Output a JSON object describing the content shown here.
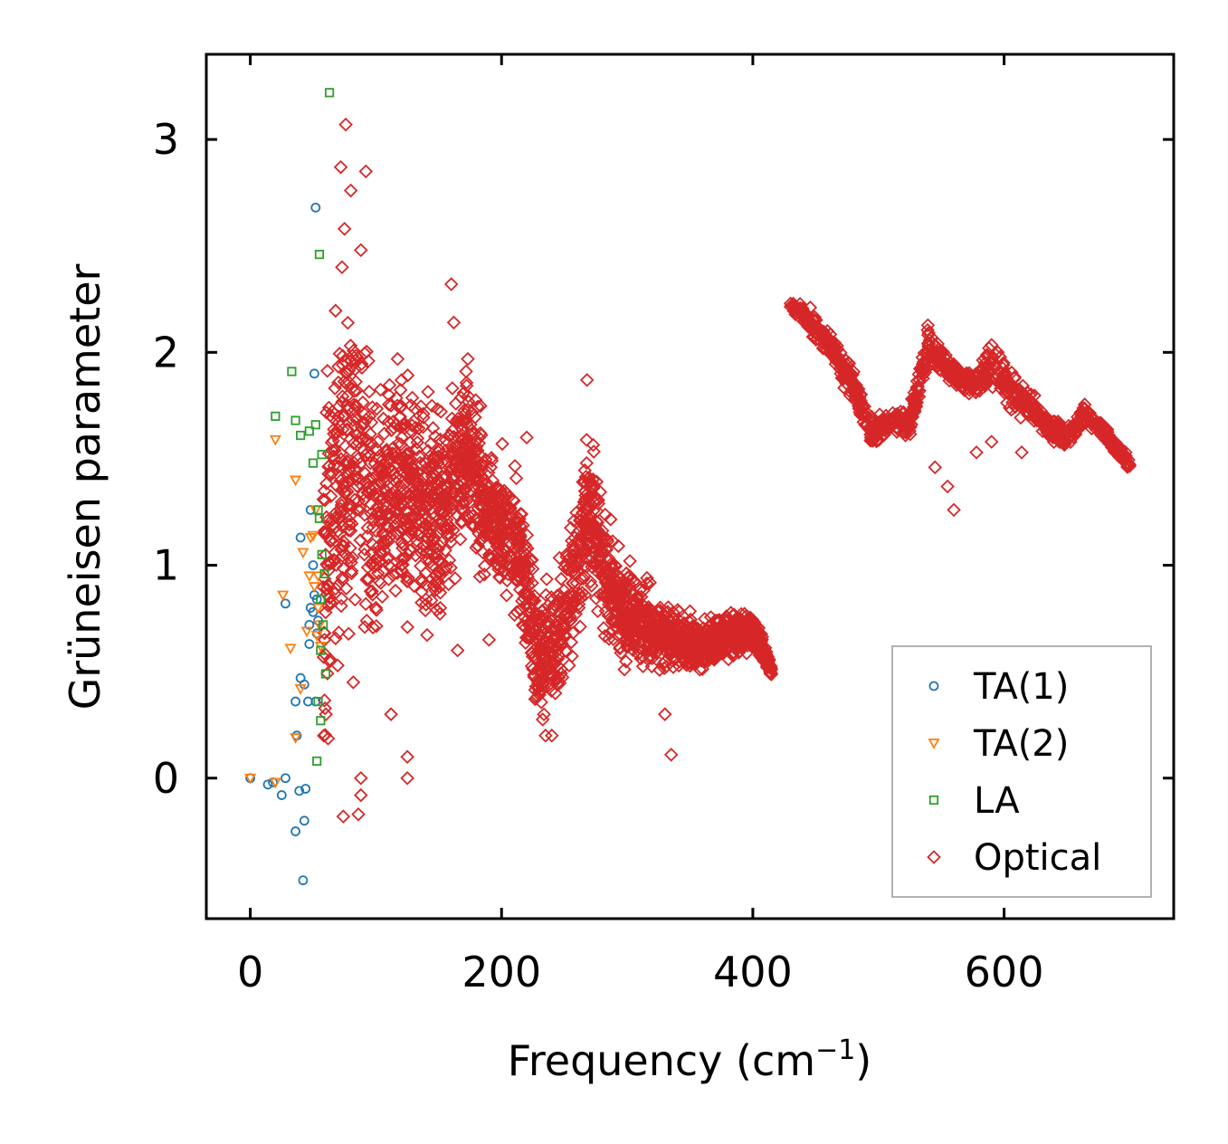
{
  "chart_data": {
    "type": "scatter",
    "title": "",
    "xlabel": "Frequency (cm",
    "xlabel_sup": "−1",
    "xlabel_close": ")",
    "ylabel": "Grüneisen parameter",
    "xlim": [
      -35,
      735
    ],
    "ylim": [
      -0.66,
      3.4
    ],
    "xticks": [
      0,
      200,
      400,
      600
    ],
    "xtick_labels": [
      "0",
      "200",
      "400",
      "600"
    ],
    "yticks": [
      0,
      1,
      2,
      3
    ],
    "ytick_labels": [
      "0",
      "1",
      "2",
      "3"
    ],
    "grid": false,
    "legend_position": "lower-right",
    "series": [
      {
        "name": "TA(1)",
        "marker": "circle",
        "color": "#1f77b4",
        "points": [
          [
            0,
            0
          ],
          [
            14,
            -0.03
          ],
          [
            18,
            -0.02
          ],
          [
            25,
            -0.08
          ],
          [
            28,
            0
          ],
          [
            36,
            -0.25
          ],
          [
            39,
            -0.06
          ],
          [
            43,
            -0.2
          ],
          [
            44,
            -0.05
          ],
          [
            42,
            -0.48
          ],
          [
            28,
            0.82
          ],
          [
            36,
            0.36
          ],
          [
            37,
            0.2
          ],
          [
            40,
            0.47
          ],
          [
            43,
            0.44
          ],
          [
            46,
            0.36
          ],
          [
            47,
            0.72
          ],
          [
            47,
            0.63
          ],
          [
            48,
            0.8
          ],
          [
            50,
            0.78
          ],
          [
            50,
            1.0
          ],
          [
            51,
            0.86
          ],
          [
            52,
            0.36
          ],
          [
            53,
            0.68
          ],
          [
            53,
            0.84
          ],
          [
            54,
            0.74
          ],
          [
            40,
            1.13
          ],
          [
            48,
            1.26
          ],
          [
            51,
            1.9
          ],
          [
            52,
            2.68
          ]
        ]
      },
      {
        "name": "TA(2)",
        "marker": "triangle-down",
        "color": "#ff7f0e",
        "points": [
          [
            0,
            0
          ],
          [
            20,
            -0.02
          ],
          [
            20,
            1.59
          ],
          [
            26,
            0.86
          ],
          [
            32,
            0.61
          ],
          [
            36,
            0.19
          ],
          [
            36,
            1.4
          ],
          [
            40,
            0.42
          ],
          [
            42,
            1.06
          ],
          [
            45,
            0.69
          ],
          [
            47,
            0.95
          ],
          [
            48,
            1.13
          ],
          [
            50,
            1.14
          ],
          [
            51,
            0.9
          ],
          [
            52,
            1.26
          ],
          [
            53,
            0.67
          ],
          [
            54,
            0.95
          ],
          [
            54,
            0.8
          ],
          [
            55,
            0.72
          ],
          [
            56,
            0.62
          ]
        ]
      },
      {
        "name": "LA",
        "marker": "square",
        "color": "#2ca02c",
        "points": [
          [
            20,
            1.7
          ],
          [
            33,
            1.91
          ],
          [
            36,
            1.68
          ],
          [
            40,
            1.61
          ],
          [
            47,
            1.63
          ],
          [
            50,
            1.48
          ],
          [
            52,
            1.66
          ],
          [
            53,
            0.08
          ],
          [
            54,
            0.36
          ],
          [
            54,
            1.26
          ],
          [
            55,
            1.22
          ],
          [
            55,
            2.46
          ],
          [
            56,
            0.27
          ],
          [
            56,
            0.6
          ],
          [
            56,
            0.84
          ],
          [
            57,
            1.52
          ],
          [
            57,
            1.05
          ],
          [
            58,
            0.72
          ],
          [
            59,
            0.96
          ],
          [
            60,
            0.49
          ],
          [
            63,
            3.22
          ]
        ]
      },
      {
        "name": "Optical",
        "marker": "diamond",
        "color": "#d62728",
        "segments": [
          {
            "x": [
              58,
              72,
              85,
              100,
              115,
              130,
              145,
              160,
              172,
              185,
              200,
              215,
              228,
              240,
              255,
              270,
              285,
              300,
              320,
              340,
              360,
              380,
              400,
              415
            ],
            "y": [
              0.95,
              1.4,
              1.55,
              1.2,
              1.35,
              1.3,
              1.25,
              1.3,
              1.6,
              1.3,
              1.2,
              1.05,
              0.55,
              0.6,
              0.85,
              1.3,
              0.9,
              0.75,
              0.7,
              0.65,
              0.62,
              0.68,
              0.7,
              0.5
            ],
            "spread": [
              0.75,
              0.75,
              0.65,
              0.55,
              0.5,
              0.45,
              0.45,
              0.35,
              0.35,
              0.3,
              0.3,
              0.3,
              0.25,
              0.25,
              0.3,
              0.35,
              0.25,
              0.2,
              0.15,
              0.12,
              0.1,
              0.1,
              0.08,
              0.03
            ],
            "count": 2600
          },
          {
            "x": [
              430,
              450,
              465,
              480,
              495,
              510,
              525,
              540,
              548,
              560,
              575,
              590,
              605,
              620,
              635,
              650,
              665,
              680,
              700
            ],
            "y": [
              2.23,
              2.12,
              2.0,
              1.85,
              1.62,
              1.68,
              1.66,
              2.05,
              1.98,
              1.9,
              1.85,
              1.95,
              1.82,
              1.75,
              1.65,
              1.6,
              1.72,
              1.62,
              1.47
            ],
            "spread": [
              0.03,
              0.05,
              0.06,
              0.07,
              0.06,
              0.04,
              0.05,
              0.08,
              0.07,
              0.05,
              0.06,
              0.08,
              0.08,
              0.07,
              0.06,
              0.05,
              0.04,
              0.04,
              0.03
            ],
            "count": 950
          }
        ],
        "outliers": [
          [
            72,
            2.87
          ],
          [
            76,
            3.07
          ],
          [
            80,
            2.76
          ],
          [
            92,
            2.85
          ],
          [
            75,
            2.58
          ],
          [
            73,
            2.4
          ],
          [
            88,
            2.48
          ],
          [
            160,
            2.32
          ],
          [
            162,
            2.14
          ],
          [
            268,
            1.87
          ],
          [
            220,
            1.6
          ],
          [
            190,
            0.65
          ],
          [
            165,
            0.6
          ],
          [
            125,
            0.1
          ],
          [
            125,
            0.0
          ],
          [
            88,
            0.0
          ],
          [
            88,
            -0.08
          ],
          [
            86,
            -0.17
          ],
          [
            74,
            -0.18
          ],
          [
            235,
            0.2
          ],
          [
            330,
            0.3
          ],
          [
            335,
            0.11
          ],
          [
            240,
            0.2
          ],
          [
            470,
            1.9
          ],
          [
            518,
            1.68
          ],
          [
            560,
            1.26
          ],
          [
            555,
            1.37
          ],
          [
            545,
            1.46
          ],
          [
            578,
            1.53
          ],
          [
            614,
            1.53
          ],
          [
            590,
            1.58
          ],
          [
            595,
            2.0
          ],
          [
            82,
            0.45
          ],
          [
            112,
            0.3
          ],
          [
            95,
            1.7
          ]
        ]
      }
    ]
  }
}
